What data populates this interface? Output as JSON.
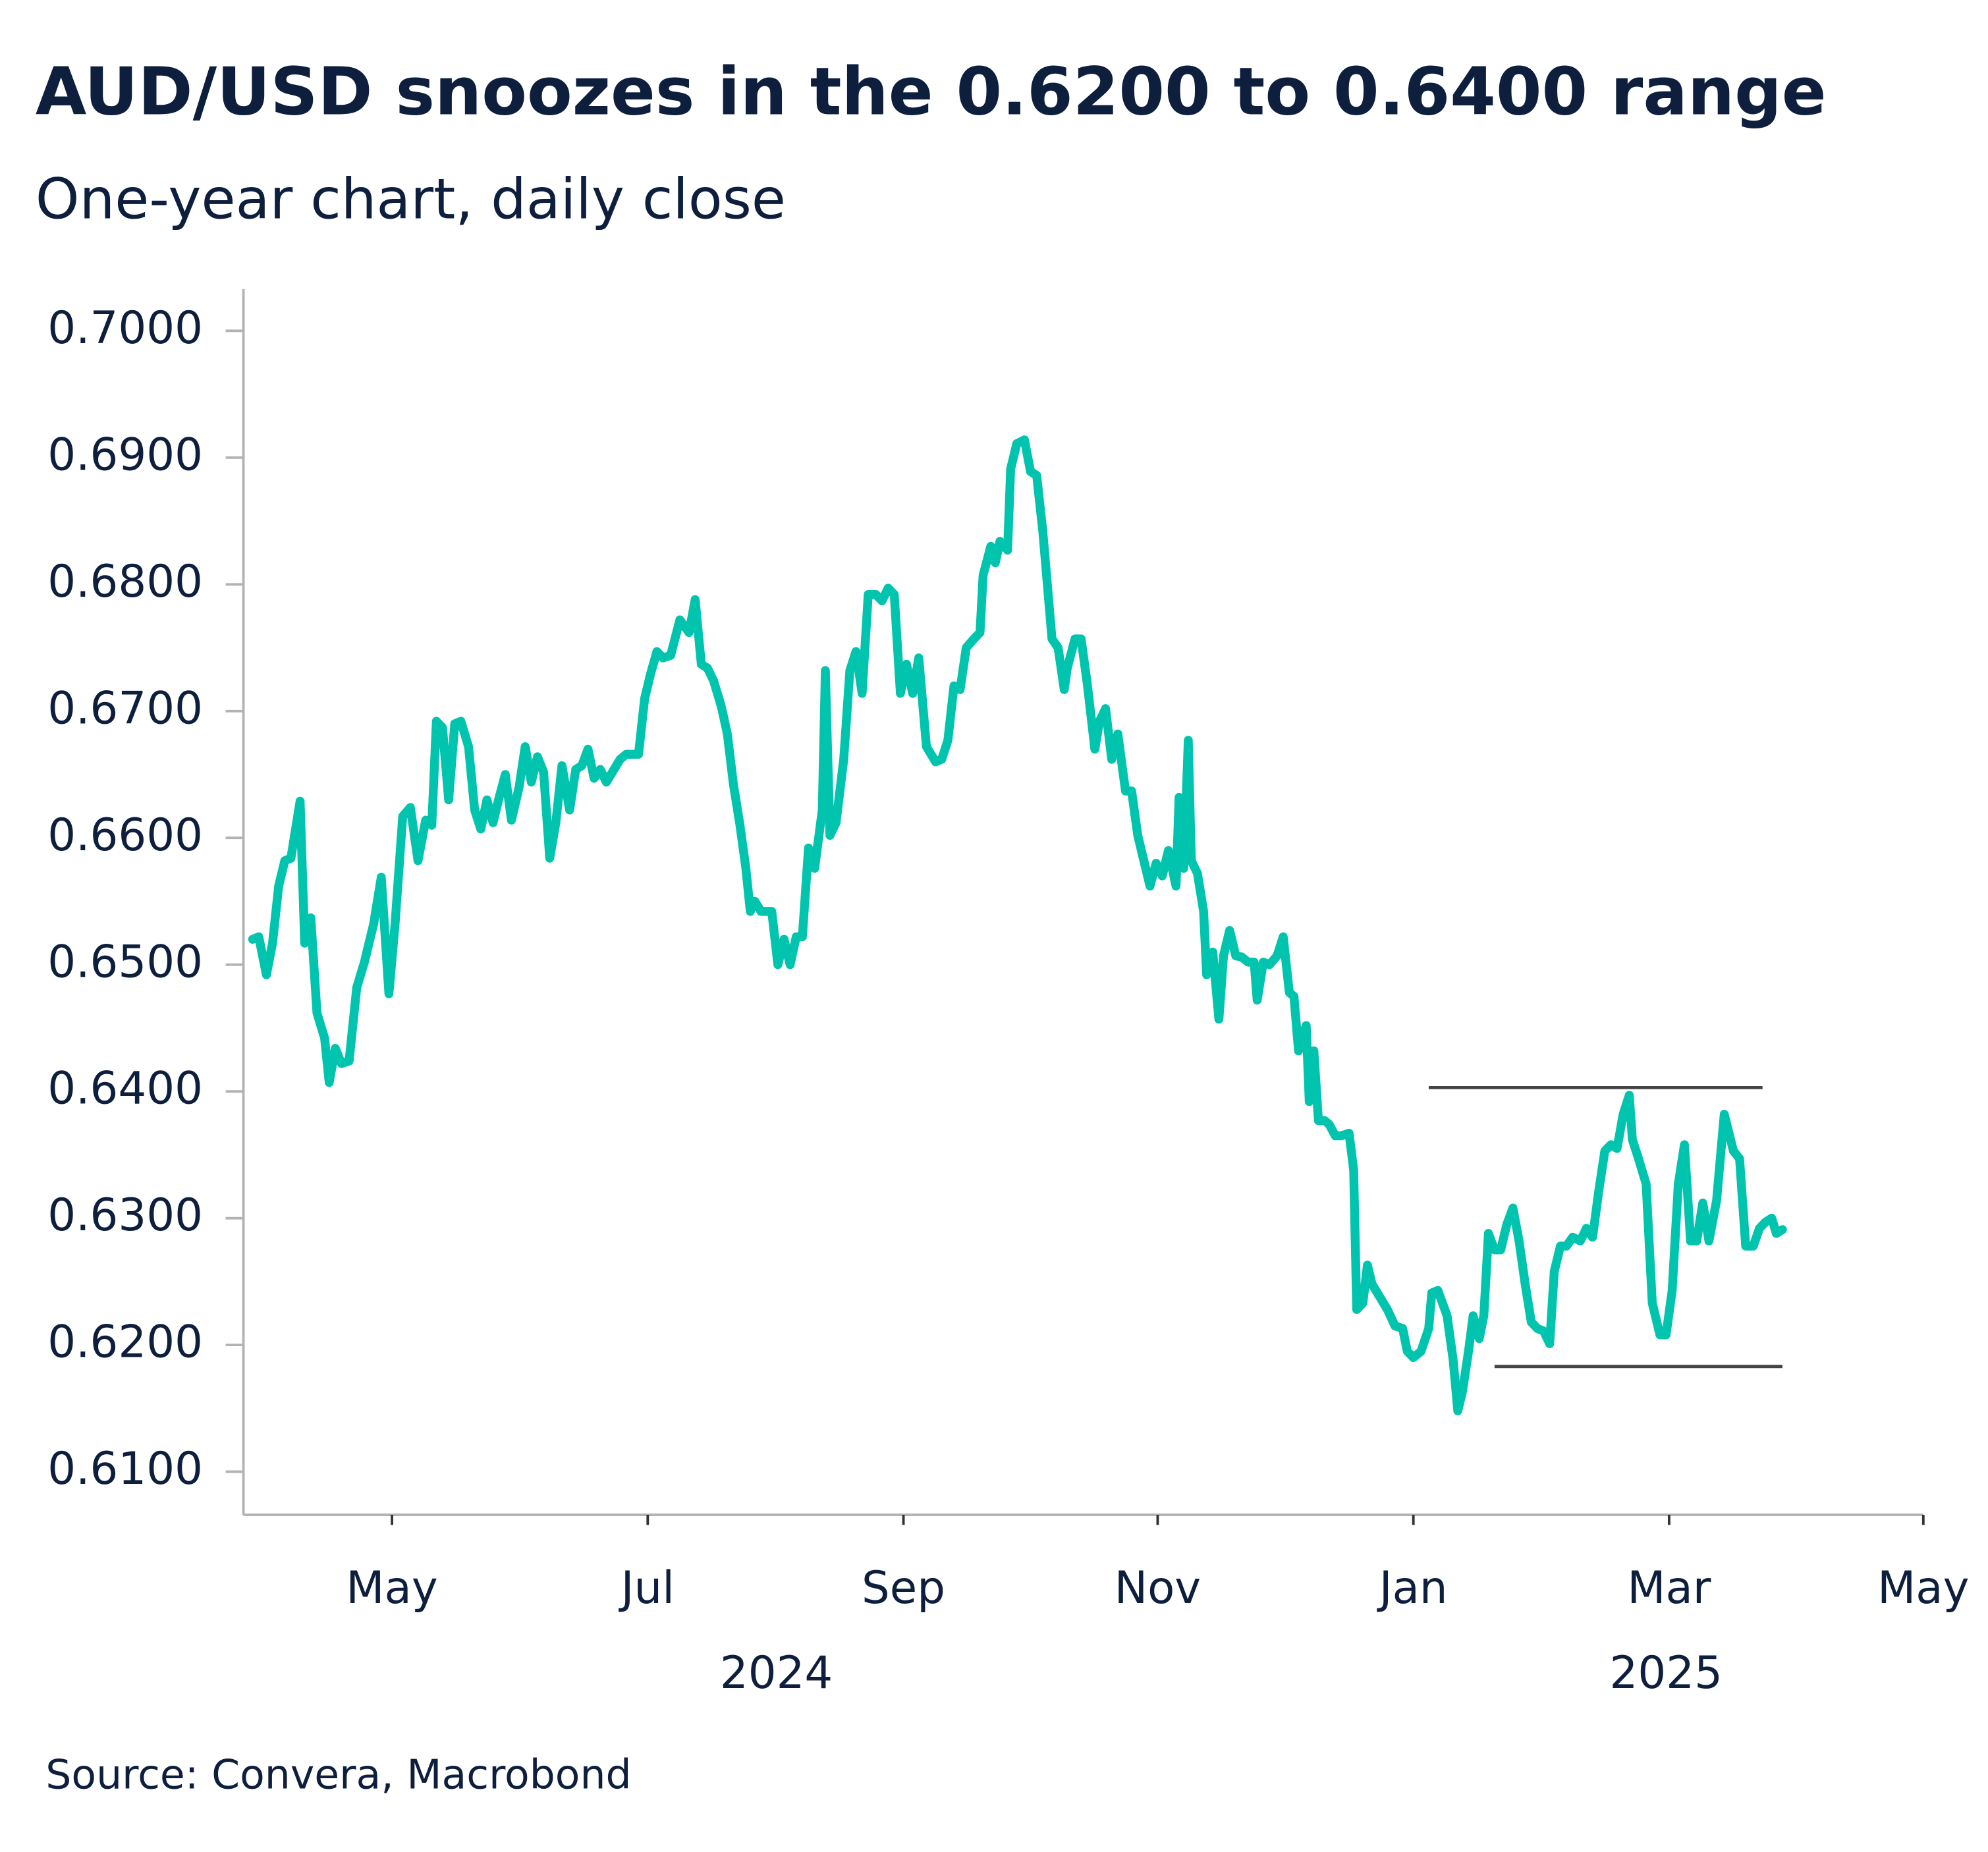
{
  "chart_data": {
    "type": "line",
    "title": "AUD/USD snoozes in the 0.6200 to 0.6400 range",
    "subtitle": "One-year chart, daily close",
    "source": "Source: Convera, Macrobond",
    "color": "#00c4ae",
    "xlim": [
      2024.236,
      2025.333
    ],
    "ylim": [
      0.6066,
      0.7033
    ],
    "xticks": [
      {
        "value": 2024.333,
        "label": "May"
      },
      {
        "value": 2024.5,
        "label": "Jul"
      },
      {
        "value": 2024.667,
        "label": "Sep"
      },
      {
        "value": 2024.833,
        "label": "Nov"
      },
      {
        "value": 2025.0,
        "label": "Jan"
      },
      {
        "value": 2025.167,
        "label": "Mar"
      },
      {
        "value": 2025.333,
        "label": "May"
      }
    ],
    "xgroups": [
      {
        "value": 2024.584,
        "label": "2024"
      },
      {
        "value": 2025.165,
        "label": "2025"
      }
    ],
    "yticks": [
      {
        "value": 0.61,
        "label": "0.6100"
      },
      {
        "value": 0.62,
        "label": "0.6200"
      },
      {
        "value": 0.63,
        "label": "0.6300"
      },
      {
        "value": 0.64,
        "label": "0.6400"
      },
      {
        "value": 0.65,
        "label": "0.6500"
      },
      {
        "value": 0.66,
        "label": "0.6600"
      },
      {
        "value": 0.67,
        "label": "0.6700"
      },
      {
        "value": 0.68,
        "label": "0.6800"
      },
      {
        "value": 0.69,
        "label": "0.6900"
      },
      {
        "value": 0.7,
        "label": "0.7000"
      }
    ],
    "hlines": [
      {
        "y": 0.6403,
        "x": [
          2025.01,
          2025.228
        ]
      },
      {
        "y": 0.6183,
        "x": [
          2025.053,
          2025.241
        ]
      }
    ],
    "x": [
      2024.242,
      2024.246,
      2024.251,
      2024.255,
      2024.259,
      2024.263,
      2024.267,
      2024.273,
      2024.276,
      2024.28,
      2024.284,
      2024.289,
      2024.292,
      2024.296,
      2024.3,
      2024.305,
      2024.31,
      2024.315,
      2024.321,
      2024.326,
      2024.331,
      2024.335,
      2024.34,
      2024.345,
      2024.35,
      2024.355,
      2024.359,
      2024.362,
      2024.366,
      2024.37,
      2024.374,
      2024.378,
      2024.383,
      2024.387,
      2024.391,
      2024.395,
      2024.399,
      2024.403,
      2024.407,
      2024.411,
      2024.416,
      2024.42,
      2024.424,
      2024.428,
      2024.432,
      2024.436,
      2024.44,
      2024.444,
      2024.449,
      2024.453,
      2024.457,
      2024.461,
      2024.465,
      2024.469,
      2024.473,
      2024.477,
      2024.482,
      2024.486,
      2024.494,
      2024.498,
      2024.502,
      2024.506,
      2024.51,
      2024.515,
      2024.521,
      2024.527,
      2024.531,
      2024.535,
      2024.539,
      2024.543,
      2024.548,
      2024.552,
      2024.556,
      2024.56,
      2024.564,
      2024.567,
      2024.57,
      2024.574,
      2024.581,
      2024.585,
      2024.589,
      2024.593,
      2024.597,
      2024.601,
      2024.605,
      2024.609,
      2024.614,
      2024.616,
      2024.619,
      2024.623,
      2024.628,
      2024.632,
      2024.636,
      2024.64,
      2024.644,
      2024.649,
      2024.653,
      2024.657,
      2024.661,
      2024.665,
      2024.669,
      2024.673,
      2024.677,
      2024.682,
      2024.688,
      2024.692,
      2024.696,
      2024.7,
      2024.704,
      2024.708,
      2024.713,
      2024.717,
      2024.719,
      2024.724,
      2024.727,
      2024.73,
      2024.735,
      2024.737,
      2024.741,
      2024.746,
      2024.75,
      2024.754,
      2024.758,
      2024.764,
      2024.768,
      2024.772,
      2024.774,
      2024.779,
      2024.783,
      2024.787,
      2024.792,
      2024.795,
      2024.799,
      2024.803,
      2024.807,
      2024.812,
      2024.816,
      2024.82,
      2024.824,
      2024.828,
      2024.832,
      2024.836,
      2024.84,
      2024.845,
      2024.847,
      2024.85,
      2024.853,
      2024.855,
      2024.859,
      2024.863,
      2024.865,
      2024.869,
      2024.873,
      2024.876,
      2024.88,
      2024.884,
      2024.888,
      2024.892,
      2024.896,
      2024.898,
      2024.902,
      2024.906,
      2024.911,
      2024.915,
      2024.919,
      2024.922,
      2024.925,
      2024.93,
      2024.932,
      2024.935,
      2024.938,
      2024.942,
      2024.945,
      2024.949,
      2024.953,
      2024.958,
      2024.961,
      2024.963,
      2024.967,
      2024.97,
      2024.973,
      2024.978,
      2024.983,
      2024.988,
      2024.993,
      2024.996,
      2025.0,
      2025.005,
      2025.01,
      2025.012,
      2025.016,
      2025.022,
      2025.026,
      2025.029,
      2025.032,
      2025.036,
      2025.039,
      2025.043,
      2025.046,
      2025.049,
      2025.053,
      2025.057,
      2025.061,
      2025.065,
      2025.069,
      2025.073,
      2025.077,
      2025.081,
      2025.085,
      2025.089,
      2025.092,
      2025.096,
      2025.1,
      2025.104,
      2025.109,
      2025.113,
      2025.117,
      2025.121,
      2025.125,
      2025.129,
      2025.133,
      2025.137,
      2025.141,
      2025.143,
      2025.147,
      2025.152,
      2025.156,
      2025.161,
      2025.165,
      2025.169,
      2025.173,
      2025.177,
      2025.181,
      2025.185,
      2025.189,
      2025.193,
      2025.198,
      2025.203,
      2025.209,
      2025.213,
      2025.217,
      2025.222,
      2025.226,
      2025.23,
      2025.234,
      2025.237,
      2025.241
    ],
    "values": [
      0.652,
      0.6522,
      0.6492,
      0.6517,
      0.6562,
      0.6582,
      0.6584,
      0.6629,
      0.6517,
      0.6537,
      0.6462,
      0.6442,
      0.6407,
      0.6434,
      0.6422,
      0.6424,
      0.6482,
      0.6502,
      0.6532,
      0.6569,
      0.6477,
      0.6532,
      0.6617,
      0.6624,
      0.6582,
      0.6614,
      0.661,
      0.6692,
      0.6687,
      0.663,
      0.669,
      0.6692,
      0.6672,
      0.6622,
      0.6607,
      0.663,
      0.6612,
      0.6632,
      0.665,
      0.6614,
      0.664,
      0.6672,
      0.6644,
      0.6664,
      0.6652,
      0.6584,
      0.6612,
      0.6657,
      0.6622,
      0.6654,
      0.6657,
      0.667,
      0.6647,
      0.6654,
      0.6644,
      0.6652,
      0.6662,
      0.6666,
      0.6666,
      0.671,
      0.673,
      0.6747,
      0.6742,
      0.6744,
      0.6772,
      0.6762,
      0.6788,
      0.6737,
      0.6734,
      0.6724,
      0.6704,
      0.6682,
      0.6642,
      0.6612,
      0.6577,
      0.6542,
      0.655,
      0.6542,
      0.6542,
      0.65,
      0.652,
      0.65,
      0.6522,
      0.6522,
      0.6592,
      0.6576,
      0.6622,
      0.6732,
      0.6602,
      0.6612,
      0.6662,
      0.6732,
      0.6747,
      0.6714,
      0.6792,
      0.6792,
      0.6787,
      0.6797,
      0.6792,
      0.6714,
      0.6737,
      0.6714,
      0.6742,
      0.6672,
      0.666,
      0.6662,
      0.6677,
      0.672,
      0.6717,
      0.675,
      0.6757,
      0.6762,
      0.6807,
      0.683,
      0.6817,
      0.6834,
      0.6827,
      0.6891,
      0.6911,
      0.6914,
      0.6889,
      0.6886,
      0.6842,
      0.6757,
      0.675,
      0.6717,
      0.6734,
      0.6757,
      0.6757,
      0.6722,
      0.667,
      0.6692,
      0.6702,
      0.6662,
      0.6682,
      0.6637,
      0.6637,
      0.6602,
      0.6582,
      0.6562,
      0.658,
      0.657,
      0.659,
      0.6562,
      0.6632,
      0.6576,
      0.6677,
      0.6582,
      0.6572,
      0.6542,
      0.6492,
      0.651,
      0.6457,
      0.6507,
      0.6527,
      0.6507,
      0.6506,
      0.6502,
      0.6502,
      0.6472,
      0.6502,
      0.65,
      0.6507,
      0.6522,
      0.6478,
      0.6475,
      0.6432,
      0.6452,
      0.6392,
      0.6432,
      0.6377,
      0.6377,
      0.6374,
      0.6365,
      0.6365,
      0.6367,
      0.6338,
      0.6228,
      0.6233,
      0.6263,
      0.6248,
      0.6238,
      0.6228,
      0.6215,
      0.6213,
      0.6195,
      0.619,
      0.6195,
      0.6213,
      0.6241,
      0.6243,
      0.6223,
      0.6188,
      0.6148,
      0.6163,
      0.6195,
      0.6223,
      0.6205,
      0.6223,
      0.6288,
      0.6275,
      0.6275,
      0.6295,
      0.6308,
      0.6282,
      0.6248,
      0.6218,
      0.6213,
      0.6211,
      0.6201,
      0.6258,
      0.6278,
      0.6278,
      0.6285,
      0.6282,
      0.6292,
      0.6285,
      0.6321,
      0.6353,
      0.6358,
      0.6355,
      0.6382,
      0.6397,
      0.6362,
      0.6347,
      0.6327,
      0.6233,
      0.6208,
      0.6208,
      0.6243,
      0.6327,
      0.6358,
      0.6282,
      0.6282,
      0.6312,
      0.6282,
      0.6314,
      0.6382,
      0.6353,
      0.6347,
      0.6278,
      0.6278,
      0.6292,
      0.6297,
      0.63,
      0.6288,
      0.6291
    ]
  }
}
